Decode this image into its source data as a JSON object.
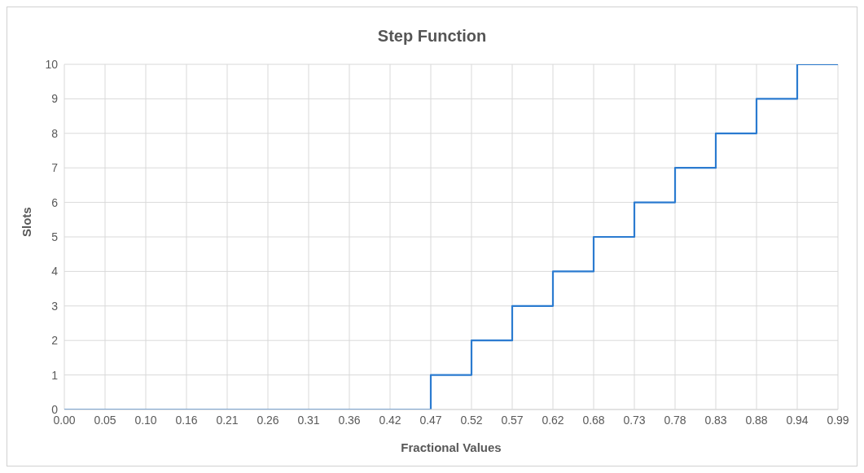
{
  "chart_data": {
    "type": "step",
    "title": "Step Function",
    "xlabel": "Fractional Values",
    "ylabel": "Slots",
    "categories": [
      "0.00",
      "0.05",
      "0.10",
      "0.16",
      "0.21",
      "0.26",
      "0.31",
      "0.36",
      "0.42",
      "0.47",
      "0.52",
      "0.57",
      "0.62",
      "0.68",
      "0.73",
      "0.78",
      "0.83",
      "0.88",
      "0.94",
      "0.99"
    ],
    "values": [
      0,
      0,
      0,
      0,
      0,
      0,
      0,
      0,
      0,
      1,
      2,
      3,
      4,
      5,
      6,
      7,
      8,
      9,
      10,
      10
    ],
    "color": "#2b7bd0",
    "ylim": [
      0,
      10
    ],
    "yticks": [
      0,
      1,
      2,
      3,
      4,
      5,
      6,
      7,
      8,
      9,
      10
    ],
    "grid": true
  }
}
